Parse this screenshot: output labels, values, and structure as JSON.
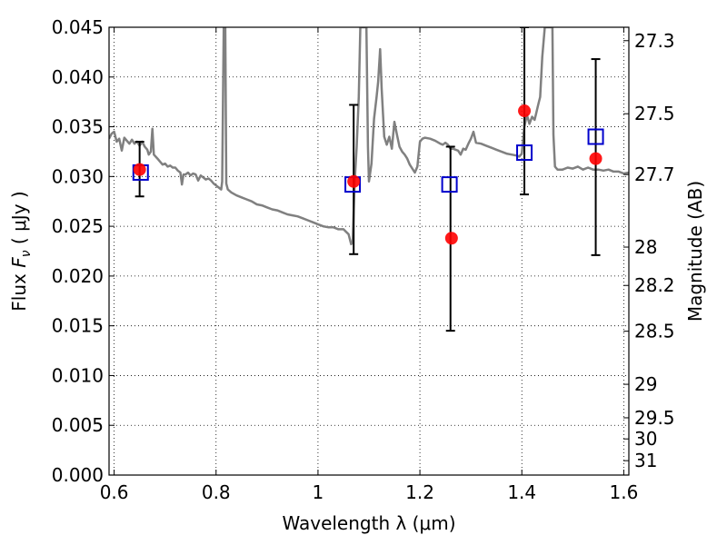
{
  "chart_data": {
    "type": "scatter",
    "xlabel": "Wavelength  λ (μm)",
    "ylabel_left": "Flux  F_ν  ( μJy )",
    "ylabel_right": "Magnitude (AB)",
    "xlim": [
      0.59,
      1.61
    ],
    "ylim": [
      0.0,
      0.045
    ],
    "grid": true,
    "x_ticks": [
      {
        "value": 0.6,
        "label": "0.6"
      },
      {
        "value": 0.8,
        "label": "0.8"
      },
      {
        "value": 1.0,
        "label": "1"
      },
      {
        "value": 1.2,
        "label": "1.2"
      },
      {
        "value": 1.4,
        "label": "1.4"
      },
      {
        "value": 1.6,
        "label": "1.6"
      }
    ],
    "y_ticks": [
      {
        "value": 0.0,
        "label": "0.000"
      },
      {
        "value": 0.005,
        "label": "0.005"
      },
      {
        "value": 0.01,
        "label": "0.010"
      },
      {
        "value": 0.015,
        "label": "0.015"
      },
      {
        "value": 0.02,
        "label": "0.020"
      },
      {
        "value": 0.025,
        "label": "0.025"
      },
      {
        "value": 0.03,
        "label": "0.030"
      },
      {
        "value": 0.035,
        "label": "0.035"
      },
      {
        "value": 0.04,
        "label": "0.040"
      },
      {
        "value": 0.045,
        "label": "0.045"
      }
    ],
    "right_ticks": [
      {
        "value": 27.3,
        "label": "27.3"
      },
      {
        "value": 27.5,
        "label": "27.5"
      },
      {
        "value": 27.7,
        "label": "27.7"
      },
      {
        "value": 28.0,
        "label": "28"
      },
      {
        "value": 28.2,
        "label": "28.2"
      },
      {
        "value": 28.5,
        "label": "28.5"
      },
      {
        "value": 29.0,
        "label": "29"
      },
      {
        "value": 29.5,
        "label": "29.5"
      },
      {
        "value": 30.0,
        "label": "30"
      },
      {
        "value": 31.0,
        "label": "31"
      }
    ],
    "series": [
      {
        "kind": "line",
        "color": "#808080",
        "points": [
          [
            0.59,
            0.0338
          ],
          [
            0.595,
            0.0343
          ],
          [
            0.6,
            0.0345
          ],
          [
            0.605,
            0.0335
          ],
          [
            0.61,
            0.0338
          ],
          [
            0.615,
            0.0326
          ],
          [
            0.62,
            0.0339
          ],
          [
            0.625,
            0.0336
          ],
          [
            0.63,
            0.0333
          ],
          [
            0.635,
            0.0337
          ],
          [
            0.64,
            0.0333
          ],
          [
            0.645,
            0.0335
          ],
          [
            0.65,
            0.0331
          ],
          [
            0.655,
            0.0335
          ],
          [
            0.66,
            0.033
          ],
          [
            0.665,
            0.0327
          ],
          [
            0.668,
            0.0322
          ],
          [
            0.672,
            0.0325
          ],
          [
            0.675,
            0.0348
          ],
          [
            0.678,
            0.0322
          ],
          [
            0.685,
            0.0318
          ],
          [
            0.69,
            0.0315
          ],
          [
            0.695,
            0.0312
          ],
          [
            0.7,
            0.0313
          ],
          [
            0.705,
            0.031
          ],
          [
            0.71,
            0.0311
          ],
          [
            0.715,
            0.0309
          ],
          [
            0.72,
            0.0309
          ],
          [
            0.725,
            0.0306
          ],
          [
            0.73,
            0.0304
          ],
          [
            0.733,
            0.0292
          ],
          [
            0.736,
            0.0302
          ],
          [
            0.74,
            0.0302
          ],
          [
            0.745,
            0.0304
          ],
          [
            0.75,
            0.0301
          ],
          [
            0.755,
            0.0303
          ],
          [
            0.76,
            0.0302
          ],
          [
            0.765,
            0.0296
          ],
          [
            0.77,
            0.0301
          ],
          [
            0.775,
            0.0299
          ],
          [
            0.78,
            0.0297
          ],
          [
            0.785,
            0.0298
          ],
          [
            0.79,
            0.0296
          ],
          [
            0.795,
            0.0293
          ],
          [
            0.8,
            0.0291
          ],
          [
            0.805,
            0.0289
          ],
          [
            0.81,
            0.0287
          ],
          [
            0.812,
            0.0295
          ],
          [
            0.815,
            0.045
          ],
          [
            0.818,
            0.045
          ],
          [
            0.82,
            0.0293
          ],
          [
            0.823,
            0.0287
          ],
          [
            0.83,
            0.0284
          ],
          [
            0.84,
            0.0281
          ],
          [
            0.85,
            0.0279
          ],
          [
            0.86,
            0.0277
          ],
          [
            0.87,
            0.0275
          ],
          [
            0.88,
            0.0272
          ],
          [
            0.89,
            0.0271
          ],
          [
            0.9,
            0.0269
          ],
          [
            0.91,
            0.0267
          ],
          [
            0.92,
            0.0266
          ],
          [
            0.93,
            0.0264
          ],
          [
            0.94,
            0.0262
          ],
          [
            0.95,
            0.0261
          ],
          [
            0.96,
            0.026
          ],
          [
            0.97,
            0.0258
          ],
          [
            0.98,
            0.0256
          ],
          [
            0.99,
            0.0254
          ],
          [
            1.0,
            0.0252
          ],
          [
            1.01,
            0.025
          ],
          [
            1.02,
            0.0249
          ],
          [
            1.03,
            0.0249
          ],
          [
            1.04,
            0.0247
          ],
          [
            1.05,
            0.0247
          ],
          [
            1.06,
            0.0242
          ],
          [
            1.065,
            0.0232
          ],
          [
            1.068,
            0.0234
          ],
          [
            1.072,
            0.0295
          ],
          [
            1.076,
            0.033
          ],
          [
            1.08,
            0.038
          ],
          [
            1.083,
            0.045
          ],
          [
            1.095,
            0.045
          ],
          [
            1.098,
            0.033
          ],
          [
            1.1,
            0.0295
          ],
          [
            1.105,
            0.0313
          ],
          [
            1.11,
            0.0358
          ],
          [
            1.115,
            0.038
          ],
          [
            1.118,
            0.0395
          ],
          [
            1.122,
            0.0428
          ],
          [
            1.125,
            0.0388
          ],
          [
            1.13,
            0.034
          ],
          [
            1.135,
            0.0332
          ],
          [
            1.14,
            0.034
          ],
          [
            1.145,
            0.0328
          ],
          [
            1.15,
            0.0355
          ],
          [
            1.155,
            0.0342
          ],
          [
            1.16,
            0.033
          ],
          [
            1.165,
            0.0325
          ],
          [
            1.17,
            0.0322
          ],
          [
            1.175,
            0.0318
          ],
          [
            1.18,
            0.0312
          ],
          [
            1.19,
            0.0304
          ],
          [
            1.195,
            0.031
          ],
          [
            1.2,
            0.0335
          ],
          [
            1.205,
            0.0338
          ],
          [
            1.21,
            0.0339
          ],
          [
            1.22,
            0.0338
          ],
          [
            1.23,
            0.0336
          ],
          [
            1.24,
            0.0333
          ],
          [
            1.245,
            0.0332
          ],
          [
            1.25,
            0.0334
          ],
          [
            1.255,
            0.0332
          ],
          [
            1.26,
            0.0328
          ],
          [
            1.265,
            0.0328
          ],
          [
            1.27,
            0.0327
          ],
          [
            1.275,
            0.0326
          ],
          [
            1.28,
            0.0322
          ],
          [
            1.285,
            0.0328
          ],
          [
            1.29,
            0.0327
          ],
          [
            1.295,
            0.0333
          ],
          [
            1.3,
            0.0338
          ],
          [
            1.305,
            0.0345
          ],
          [
            1.31,
            0.0334
          ],
          [
            1.32,
            0.0333
          ],
          [
            1.33,
            0.0331
          ],
          [
            1.34,
            0.0329
          ],
          [
            1.35,
            0.0327
          ],
          [
            1.36,
            0.0325
          ],
          [
            1.37,
            0.0323
          ],
          [
            1.38,
            0.0322
          ],
          [
            1.39,
            0.0321
          ],
          [
            1.395,
            0.032
          ],
          [
            1.4,
            0.0323
          ],
          [
            1.405,
            0.035
          ],
          [
            1.41,
            0.0362
          ],
          [
            1.415,
            0.0353
          ],
          [
            1.42,
            0.036
          ],
          [
            1.425,
            0.0357
          ],
          [
            1.428,
            0.0363
          ],
          [
            1.432,
            0.0372
          ],
          [
            1.436,
            0.038
          ],
          [
            1.44,
            0.042
          ],
          [
            1.445,
            0.045
          ],
          [
            1.46,
            0.045
          ],
          [
            1.462,
            0.0342
          ],
          [
            1.465,
            0.031
          ],
          [
            1.47,
            0.0307
          ],
          [
            1.48,
            0.0307
          ],
          [
            1.49,
            0.0309
          ],
          [
            1.5,
            0.0308
          ],
          [
            1.51,
            0.031
          ],
          [
            1.52,
            0.0307
          ],
          [
            1.53,
            0.0309
          ],
          [
            1.54,
            0.0307
          ],
          [
            1.55,
            0.0307
          ],
          [
            1.56,
            0.0306
          ],
          [
            1.57,
            0.0307
          ],
          [
            1.58,
            0.0305
          ],
          [
            1.59,
            0.0305
          ],
          [
            1.6,
            0.0303
          ],
          [
            1.61,
            0.0304
          ]
        ]
      },
      {
        "kind": "errorbar",
        "color": "#000000",
        "points": [
          {
            "x": 0.65,
            "y": 0.0307,
            "low": 0.028,
            "high": 0.0335
          },
          {
            "x": 1.07,
            "y": 0.0295,
            "low": 0.0222,
            "high": 0.0372
          },
          {
            "x": 1.26,
            "y": 0.0238,
            "low": 0.0145,
            "high": 0.033
          },
          {
            "x": 1.405,
            "y": 0.0366,
            "low": 0.0282,
            "high": 0.045
          },
          {
            "x": 1.545,
            "y": 0.0318,
            "low": 0.0221,
            "high": 0.0418
          }
        ]
      },
      {
        "kind": "scatter",
        "marker": "square-open",
        "color": "#0000cc",
        "points": [
          [
            0.652,
            0.0304
          ],
          [
            1.068,
            0.0292
          ],
          [
            1.258,
            0.0292
          ],
          [
            1.405,
            0.0324
          ],
          [
            1.545,
            0.034
          ]
        ]
      },
      {
        "kind": "scatter",
        "marker": "circle-filled",
        "color": "#ff0000",
        "points": [
          [
            0.65,
            0.0307
          ],
          [
            1.07,
            0.0295
          ],
          [
            1.262,
            0.0238
          ],
          [
            1.405,
            0.0366
          ],
          [
            1.545,
            0.0318
          ]
        ]
      }
    ]
  }
}
